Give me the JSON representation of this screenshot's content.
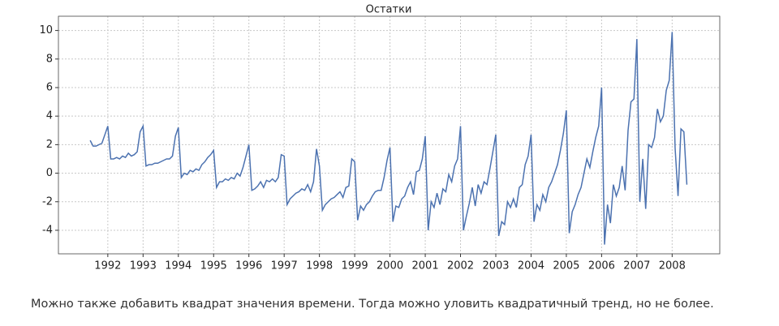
{
  "chart_data": {
    "type": "line",
    "title": "Остатки",
    "x": [
      1991.5,
      1991.583,
      1991.667,
      1991.75,
      1991.833,
      1991.917,
      1992,
      1992.083,
      1992.167,
      1992.25,
      1992.333,
      1992.417,
      1992.5,
      1992.583,
      1992.667,
      1992.75,
      1992.833,
      1992.917,
      1993,
      1993.083,
      1993.167,
      1993.25,
      1993.333,
      1993.417,
      1993.5,
      1993.583,
      1993.667,
      1993.75,
      1993.833,
      1993.917,
      1994,
      1994.083,
      1994.167,
      1994.25,
      1994.333,
      1994.417,
      1994.5,
      1994.583,
      1994.667,
      1994.75,
      1994.833,
      1994.917,
      1995,
      1995.083,
      1995.167,
      1995.25,
      1995.333,
      1995.417,
      1995.5,
      1995.583,
      1995.667,
      1995.75,
      1995.833,
      1995.917,
      1996,
      1996.083,
      1996.167,
      1996.25,
      1996.333,
      1996.417,
      1996.5,
      1996.583,
      1996.667,
      1996.75,
      1996.833,
      1996.917,
      1997,
      1997.083,
      1997.167,
      1997.25,
      1997.333,
      1997.417,
      1997.5,
      1997.583,
      1997.667,
      1997.75,
      1997.833,
      1997.917,
      1998,
      1998.083,
      1998.167,
      1998.25,
      1998.333,
      1998.417,
      1998.5,
      1998.583,
      1998.667,
      1998.75,
      1998.833,
      1998.917,
      1999,
      1999.083,
      1999.167,
      1999.25,
      1999.333,
      1999.417,
      1999.5,
      1999.583,
      1999.667,
      1999.75,
      1999.833,
      1999.917,
      2000,
      2000.083,
      2000.167,
      2000.25,
      2000.333,
      2000.417,
      2000.5,
      2000.583,
      2000.667,
      2000.75,
      2000.833,
      2000.917,
      2001,
      2001.083,
      2001.167,
      2001.25,
      2001.333,
      2001.417,
      2001.5,
      2001.583,
      2001.667,
      2001.75,
      2001.833,
      2001.917,
      2002,
      2002.083,
      2002.167,
      2002.25,
      2002.333,
      2002.417,
      2002.5,
      2002.583,
      2002.667,
      2002.75,
      2002.833,
      2002.917,
      2003,
      2003.083,
      2003.167,
      2003.25,
      2003.333,
      2003.417,
      2003.5,
      2003.583,
      2003.667,
      2003.75,
      2003.833,
      2003.917,
      2004,
      2004.083,
      2004.167,
      2004.25,
      2004.333,
      2004.417,
      2004.5,
      2004.583,
      2004.667,
      2004.75,
      2004.833,
      2004.917,
      2005,
      2005.083,
      2005.167,
      2005.25,
      2005.333,
      2005.417,
      2005.5,
      2005.583,
      2005.667,
      2005.75,
      2005.833,
      2005.917,
      2006,
      2006.083,
      2006.167,
      2006.25,
      2006.333,
      2006.417,
      2006.5,
      2006.583,
      2006.667,
      2006.75,
      2006.833,
      2006.917,
      2007,
      2007.083,
      2007.167,
      2007.25,
      2007.333,
      2007.417,
      2007.5,
      2007.583,
      2007.667,
      2007.75,
      2007.833,
      2007.917,
      2008,
      2008.083,
      2008.167,
      2008.25,
      2008.333,
      2008.417
    ],
    "series": [
      {
        "color": "#4c72b0",
        "values": [
          2.3,
          1.9,
          1.9,
          2.0,
          2.1,
          2.7,
          3.3,
          1.0,
          1.0,
          1.1,
          1.0,
          1.2,
          1.1,
          1.4,
          1.2,
          1.3,
          1.5,
          2.9,
          3.3,
          0.5,
          0.6,
          0.6,
          0.7,
          0.7,
          0.8,
          0.9,
          1.0,
          1.0,
          1.2,
          2.6,
          3.2,
          -0.3,
          0.0,
          -0.1,
          0.2,
          0.1,
          0.3,
          0.2,
          0.6,
          0.8,
          1.1,
          1.3,
          1.6,
          -1.0,
          -0.6,
          -0.6,
          -0.4,
          -0.5,
          -0.3,
          -0.4,
          0.0,
          -0.2,
          0.4,
          1.2,
          2.0,
          -1.2,
          -1.1,
          -0.9,
          -0.6,
          -1.0,
          -0.5,
          -0.6,
          -0.4,
          -0.6,
          -0.3,
          1.3,
          1.2,
          -2.2,
          -1.8,
          -1.6,
          -1.4,
          -1.3,
          -1.1,
          -1.2,
          -0.8,
          -1.3,
          -0.6,
          1.7,
          0.5,
          -2.6,
          -2.2,
          -2.0,
          -1.8,
          -1.7,
          -1.5,
          -1.3,
          -1.7,
          -1.0,
          -0.9,
          1.0,
          0.8,
          -3.3,
          -2.3,
          -2.6,
          -2.2,
          -2.0,
          -1.6,
          -1.3,
          -1.2,
          -1.2,
          -0.3,
          0.9,
          1.8,
          -3.4,
          -2.3,
          -2.4,
          -1.8,
          -1.6,
          -1.0,
          -0.6,
          -1.5,
          0.1,
          0.2,
          1.0,
          2.6,
          -4.0,
          -2.0,
          -2.4,
          -1.4,
          -2.2,
          -1.1,
          -1.3,
          -0.1,
          -0.6,
          0.5,
          1.0,
          3.3,
          -4.0,
          -3.0,
          -2.1,
          -1.0,
          -2.3,
          -0.8,
          -1.4,
          -0.6,
          -0.8,
          0.3,
          1.5,
          2.7,
          -4.4,
          -3.4,
          -3.6,
          -2.0,
          -2.4,
          -1.8,
          -2.4,
          -1.0,
          -0.8,
          0.6,
          1.2,
          2.7,
          -3.4,
          -2.2,
          -2.6,
          -1.5,
          -2.0,
          -1.0,
          -0.6,
          0.0,
          0.6,
          1.6,
          2.8,
          4.4,
          -4.2,
          -2.7,
          -2.2,
          -1.5,
          -1.0,
          0.0,
          1.0,
          0.4,
          1.5,
          2.5,
          3.3,
          6.0,
          -5.0,
          -2.2,
          -3.5,
          -0.8,
          -1.6,
          -1.0,
          0.5,
          -1.2,
          3.0,
          5.0,
          5.2,
          9.4,
          -2.0,
          1.0,
          -2.5,
          2.0,
          1.8,
          2.5,
          4.5,
          3.6,
          4.0,
          5.8,
          6.5,
          9.9,
          1.8,
          -1.6,
          3.1,
          2.9,
          -0.8
        ]
      }
    ],
    "xlim": [
      1990.6,
      2009.35
    ],
    "xticks": [
      1992,
      1993,
      1994,
      1995,
      1996,
      1997,
      1998,
      1999,
      2000,
      2001,
      2002,
      2003,
      2004,
      2005,
      2006,
      2007,
      2008
    ],
    "ylim": [
      -5.65,
      11.0
    ],
    "yticks": [
      -4,
      -2,
      0,
      2,
      4,
      6,
      8,
      10
    ],
    "grid": true
  },
  "caption": "Можно также добавить квадрат значения времени. Тогда можно уловить квадратичный тренд, но не более."
}
